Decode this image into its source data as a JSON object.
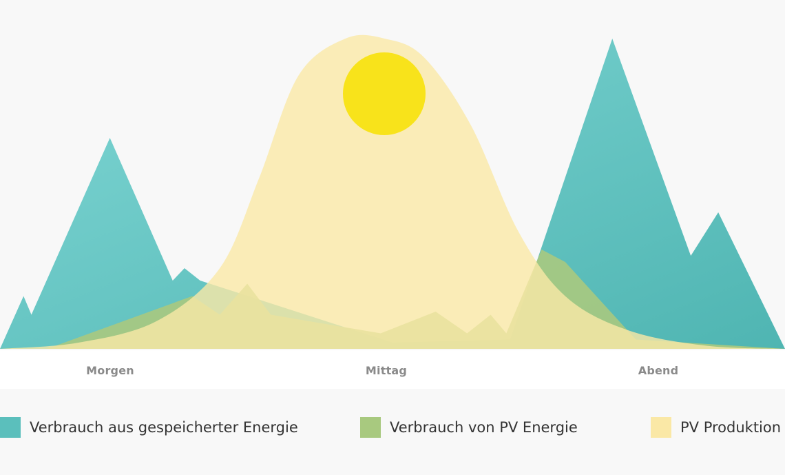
{
  "chart_data": {
    "type": "area",
    "x_labels": [
      "Morgen",
      "Mittag",
      "Abend"
    ],
    "series": [
      {
        "name": "Verbrauch aus gespeicherter Energie",
        "color": "#5bbfbc",
        "points": [
          [
            0,
            0
          ],
          [
            0.03,
            0.17
          ],
          [
            0.04,
            0.11
          ],
          [
            0.14,
            0.68
          ],
          [
            0.22,
            0.22
          ],
          [
            0.235,
            0.26
          ],
          [
            0.255,
            0.22
          ],
          [
            0.5,
            0.02
          ],
          [
            0.65,
            0.03
          ],
          [
            0.78,
            1.0
          ],
          [
            0.88,
            0.3
          ],
          [
            0.915,
            0.44
          ],
          [
            1.0,
            0
          ]
        ]
      },
      {
        "name": "Verbrauch von PV Energie",
        "color": "#a8c97f",
        "points": [
          [
            0.06,
            0
          ],
          [
            0.245,
            0.17
          ],
          [
            0.28,
            0.11
          ],
          [
            0.315,
            0.21
          ],
          [
            0.345,
            0.11
          ],
          [
            0.485,
            0.05
          ],
          [
            0.555,
            0.12
          ],
          [
            0.595,
            0.05
          ],
          [
            0.625,
            0.11
          ],
          [
            0.645,
            0.05
          ],
          [
            0.69,
            0.32
          ],
          [
            0.72,
            0.28
          ],
          [
            0.81,
            0.03
          ],
          [
            1.0,
            0
          ]
        ]
      },
      {
        "name": "PV Produktion",
        "color": "#fae8a6",
        "points": [
          [
            0,
            0
          ],
          [
            0.1,
            0.02
          ],
          [
            0.2,
            0.09
          ],
          [
            0.28,
            0.26
          ],
          [
            0.33,
            0.55
          ],
          [
            0.38,
            0.88
          ],
          [
            0.44,
            1.0
          ],
          [
            0.49,
            1.0
          ],
          [
            0.54,
            0.94
          ],
          [
            0.6,
            0.72
          ],
          [
            0.66,
            0.38
          ],
          [
            0.72,
            0.17
          ],
          [
            0.8,
            0.06
          ],
          [
            0.9,
            0.01
          ],
          [
            1.0,
            0
          ]
        ]
      }
    ],
    "sun_color": "#f8e31b"
  },
  "legend": [
    {
      "label": "Verbrauch aus gespeicherter Energie",
      "color": "#5bbfbc"
    },
    {
      "label": "Verbrauch von PV Energie",
      "color": "#a8c97f"
    },
    {
      "label": "PV Produktion",
      "color": "#fae8a6"
    }
  ]
}
